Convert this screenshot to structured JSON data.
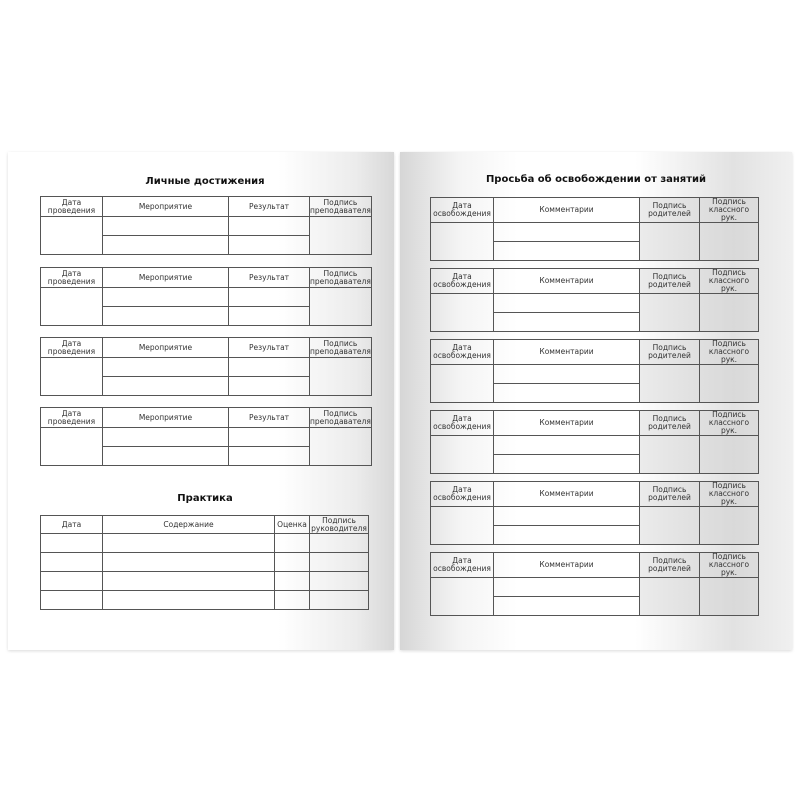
{
  "left": {
    "achievements": {
      "title": "Личные достижения",
      "headers": [
        "Дата проведения",
        "Мероприятие",
        "Результат",
        "Подпись преподавателя"
      ],
      "count": 4
    },
    "practice": {
      "title": "Практика",
      "headers": [
        "Дата",
        "Содержание",
        "Оценка",
        "Подпись руководителя"
      ],
      "rows": 4
    }
  },
  "right": {
    "leave": {
      "title": "Просьба об освобождении от занятий",
      "headers": [
        "Дата освобождения",
        "Комментарии",
        "Подпись родителей",
        "Подпись классного рук."
      ],
      "count": 6
    }
  }
}
